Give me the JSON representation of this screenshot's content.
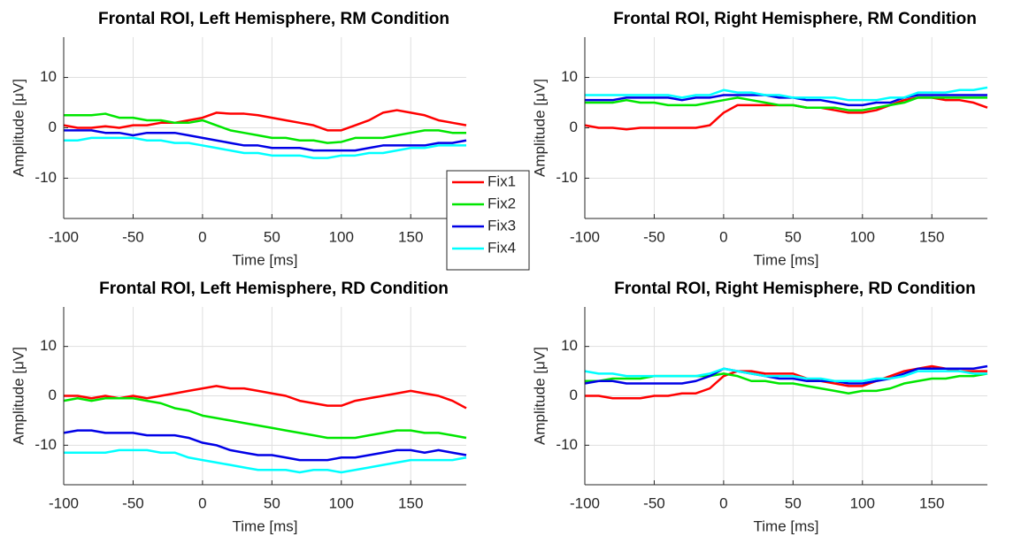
{
  "chart_data": [
    {
      "type": "line",
      "title": "Frontal ROI, Left Hemisphere, RM Condition",
      "xlabel": "Time [ms]",
      "ylabel": "Amplitude [μV]",
      "xlim": [
        -100,
        190
      ],
      "ylim": [
        -18,
        18
      ],
      "xticks": [
        -100,
        -50,
        0,
        50,
        100,
        150
      ],
      "yticks": [
        -10,
        0,
        10
      ],
      "grid": true,
      "legend": "east",
      "x": [
        -100,
        -90,
        -80,
        -70,
        -60,
        -50,
        -40,
        -30,
        -20,
        -10,
        0,
        10,
        20,
        30,
        40,
        50,
        60,
        70,
        80,
        90,
        100,
        110,
        120,
        130,
        140,
        150,
        160,
        170,
        180,
        190
      ],
      "series": [
        {
          "name": "Fix1",
          "color": "#ff0000",
          "values": [
            0.5,
            0,
            0,
            0.3,
            0,
            0.5,
            0.5,
            1,
            1,
            1.5,
            2,
            3,
            2.8,
            2.8,
            2.5,
            2,
            1.5,
            1,
            0.5,
            -0.5,
            -0.5,
            0.5,
            1.5,
            3,
            3.5,
            3,
            2.5,
            1.5,
            1,
            0.5
          ]
        },
        {
          "name": "Fix2",
          "color": "#00e600",
          "values": [
            2.5,
            2.5,
            2.5,
            2.8,
            2,
            2,
            1.5,
            1.5,
            1,
            1,
            1.5,
            0.5,
            -0.5,
            -1,
            -1.5,
            -2,
            -2,
            -2.5,
            -2.5,
            -3,
            -2.8,
            -2,
            -2,
            -2,
            -1.5,
            -1,
            -0.5,
            -0.5,
            -1,
            -1
          ]
        },
        {
          "name": "Fix3",
          "color": "#0000e6",
          "values": [
            -0.5,
            -0.5,
            -0.5,
            -1,
            -1,
            -1.5,
            -1,
            -1,
            -1,
            -1.5,
            -2,
            -2.5,
            -3,
            -3.5,
            -3.5,
            -4,
            -4,
            -4,
            -4.5,
            -4.5,
            -4.5,
            -4.5,
            -4,
            -3.5,
            -3.5,
            -3.5,
            -3.5,
            -3,
            -3,
            -2.5
          ]
        },
        {
          "name": "Fix4",
          "color": "#00ffff",
          "values": [
            -2.5,
            -2.5,
            -2,
            -2,
            -2,
            -2,
            -2.5,
            -2.5,
            -3,
            -3,
            -3.5,
            -4,
            -4.5,
            -5,
            -5,
            -5.5,
            -5.5,
            -5.5,
            -6,
            -6,
            -5.5,
            -5.5,
            -5,
            -5,
            -4.5,
            -4,
            -4,
            -3.5,
            -3.5,
            -3.5
          ]
        }
      ]
    },
    {
      "type": "line",
      "title": "Frontal ROI, Right Hemisphere, RM Condition",
      "xlabel": "Time [ms]",
      "ylabel": "Amplitude [μV]",
      "xlim": [
        -100,
        190
      ],
      "ylim": [
        -18,
        18
      ],
      "xticks": [
        -100,
        -50,
        0,
        50,
        100,
        150
      ],
      "yticks": [
        -10,
        0,
        10
      ],
      "grid": true,
      "x": [
        -100,
        -90,
        -80,
        -70,
        -60,
        -50,
        -40,
        -30,
        -20,
        -10,
        0,
        10,
        20,
        30,
        40,
        50,
        60,
        70,
        80,
        90,
        100,
        110,
        120,
        130,
        140,
        150,
        160,
        170,
        180,
        190
      ],
      "series": [
        {
          "name": "Fix1",
          "color": "#ff0000",
          "values": [
            0.5,
            0,
            0,
            -0.3,
            0,
            0,
            0,
            0,
            0,
            0.5,
            3,
            4.5,
            4.5,
            4.5,
            4.5,
            4.5,
            4,
            4,
            3.5,
            3,
            3,
            3.5,
            4.5,
            5.5,
            6,
            6,
            5.5,
            5.5,
            5,
            4
          ]
        },
        {
          "name": "Fix2",
          "color": "#00e600",
          "values": [
            5,
            5,
            5,
            5.5,
            5,
            5,
            4.5,
            4.5,
            4.5,
            5,
            5.5,
            6,
            5.5,
            5,
            4.5,
            4.5,
            4,
            4,
            4,
            3.5,
            3.5,
            4,
            4.5,
            5,
            6,
            6,
            6,
            6,
            6,
            6
          ]
        },
        {
          "name": "Fix3",
          "color": "#0000e6",
          "values": [
            5.5,
            5.5,
            5.5,
            6,
            6,
            6,
            6,
            5.5,
            6,
            6,
            6.5,
            6.5,
            6.5,
            6.5,
            6,
            6,
            5.5,
            5.5,
            5,
            4.5,
            4.5,
            5,
            5,
            6,
            6.5,
            6.5,
            6.5,
            6.5,
            6.5,
            6.5
          ]
        },
        {
          "name": "Fix4",
          "color": "#00ffff",
          "values": [
            6.5,
            6.5,
            6.5,
            6.5,
            6.5,
            6.5,
            6.5,
            6,
            6.5,
            6.5,
            7.5,
            7,
            7,
            6.5,
            6.5,
            6,
            6,
            6,
            6,
            5.5,
            5.5,
            5.5,
            6,
            6,
            7,
            7,
            7,
            7.5,
            7.5,
            8
          ]
        }
      ]
    },
    {
      "type": "line",
      "title": "Frontal ROI, Left Hemisphere, RD Condition",
      "xlabel": "Time [ms]",
      "ylabel": "Amplitude [μV]",
      "xlim": [
        -100,
        190
      ],
      "ylim": [
        -18,
        18
      ],
      "xticks": [
        -100,
        -50,
        0,
        50,
        100,
        150
      ],
      "yticks": [
        -10,
        0,
        10
      ],
      "grid": true,
      "x": [
        -100,
        -90,
        -80,
        -70,
        -60,
        -50,
        -40,
        -30,
        -20,
        -10,
        0,
        10,
        20,
        30,
        40,
        50,
        60,
        70,
        80,
        90,
        100,
        110,
        120,
        130,
        140,
        150,
        160,
        170,
        180,
        190
      ],
      "series": [
        {
          "name": "Fix1",
          "color": "#ff0000",
          "values": [
            0,
            0,
            -0.5,
            0,
            -0.5,
            0,
            -0.5,
            0,
            0.5,
            1,
            1.5,
            2,
            1.5,
            1.5,
            1,
            0.5,
            0,
            -1,
            -1.5,
            -2,
            -2,
            -1,
            -0.5,
            0,
            0.5,
            1,
            0.5,
            0,
            -1,
            -2.5
          ]
        },
        {
          "name": "Fix2",
          "color": "#00e600",
          "values": [
            -1,
            -0.5,
            -1,
            -0.5,
            -0.5,
            -0.5,
            -1,
            -1.5,
            -2.5,
            -3,
            -4,
            -4.5,
            -5,
            -5.5,
            -6,
            -6.5,
            -7,
            -7.5,
            -8,
            -8.5,
            -8.5,
            -8.5,
            -8,
            -7.5,
            -7,
            -7,
            -7.5,
            -7.5,
            -8,
            -8.5
          ]
        },
        {
          "name": "Fix3",
          "color": "#0000e6",
          "values": [
            -7.5,
            -7,
            -7,
            -7.5,
            -7.5,
            -7.5,
            -8,
            -8,
            -8,
            -8.5,
            -9.5,
            -10,
            -11,
            -11.5,
            -12,
            -12,
            -12.5,
            -13,
            -13,
            -13,
            -12.5,
            -12.5,
            -12,
            -11.5,
            -11,
            -11,
            -11.5,
            -11,
            -11.5,
            -12
          ]
        },
        {
          "name": "Fix4",
          "color": "#00ffff",
          "values": [
            -11.5,
            -11.5,
            -11.5,
            -11.5,
            -11,
            -11,
            -11,
            -11.5,
            -11.5,
            -12.5,
            -13,
            -13.5,
            -14,
            -14.5,
            -15,
            -15,
            -15,
            -15.5,
            -15,
            -15,
            -15.5,
            -15,
            -14.5,
            -14,
            -13.5,
            -13,
            -13,
            -13,
            -13,
            -12.5
          ]
        }
      ]
    },
    {
      "type": "line",
      "title": "Frontal ROI, Right Hemisphere, RD Condition",
      "xlabel": "Time [ms]",
      "ylabel": "Amplitude [μV]",
      "xlim": [
        -100,
        190
      ],
      "ylim": [
        -18,
        18
      ],
      "xticks": [
        -100,
        -50,
        0,
        50,
        100,
        150
      ],
      "yticks": [
        -10,
        0,
        10
      ],
      "grid": true,
      "x": [
        -100,
        -90,
        -80,
        -70,
        -60,
        -50,
        -40,
        -30,
        -20,
        -10,
        0,
        10,
        20,
        30,
        40,
        50,
        60,
        70,
        80,
        90,
        100,
        110,
        120,
        130,
        140,
        150,
        160,
        170,
        180,
        190
      ],
      "series": [
        {
          "name": "Fix1",
          "color": "#ff0000",
          "values": [
            0,
            0,
            -0.5,
            -0.5,
            -0.5,
            0,
            0,
            0.5,
            0.5,
            1.5,
            4,
            5,
            5,
            4.5,
            4.5,
            4.5,
            3.5,
            3,
            2.5,
            2,
            2,
            3,
            4,
            5,
            5.5,
            6,
            5.5,
            5,
            5,
            5
          ]
        },
        {
          "name": "Fix2",
          "color": "#00e600",
          "values": [
            3,
            3,
            3.5,
            3.5,
            3.5,
            4,
            4,
            4,
            4,
            4,
            4.5,
            4,
            3,
            3,
            2.5,
            2.5,
            2,
            1.5,
            1,
            0.5,
            1,
            1,
            1.5,
            2.5,
            3,
            3.5,
            3.5,
            4,
            4,
            4.5
          ]
        },
        {
          "name": "Fix3",
          "color": "#0000e6",
          "values": [
            2.5,
            3,
            3,
            2.5,
            2.5,
            2.5,
            2.5,
            2.5,
            3,
            4,
            5.5,
            5,
            4.5,
            4,
            3.5,
            3.5,
            3,
            3,
            3,
            2.5,
            2.5,
            3,
            3.5,
            4.5,
            5.5,
            5.5,
            5.5,
            5.5,
            5.5,
            6
          ]
        },
        {
          "name": "Fix4",
          "color": "#00ffff",
          "values": [
            5,
            4.5,
            4.5,
            4,
            4,
            4,
            4,
            4,
            4,
            4.5,
            5.5,
            5,
            4.5,
            4,
            4,
            4,
            3.5,
            3.5,
            3,
            3,
            3,
            3.5,
            3.5,
            4,
            5,
            5,
            5,
            5,
            4.5,
            4.5
          ]
        }
      ]
    }
  ]
}
